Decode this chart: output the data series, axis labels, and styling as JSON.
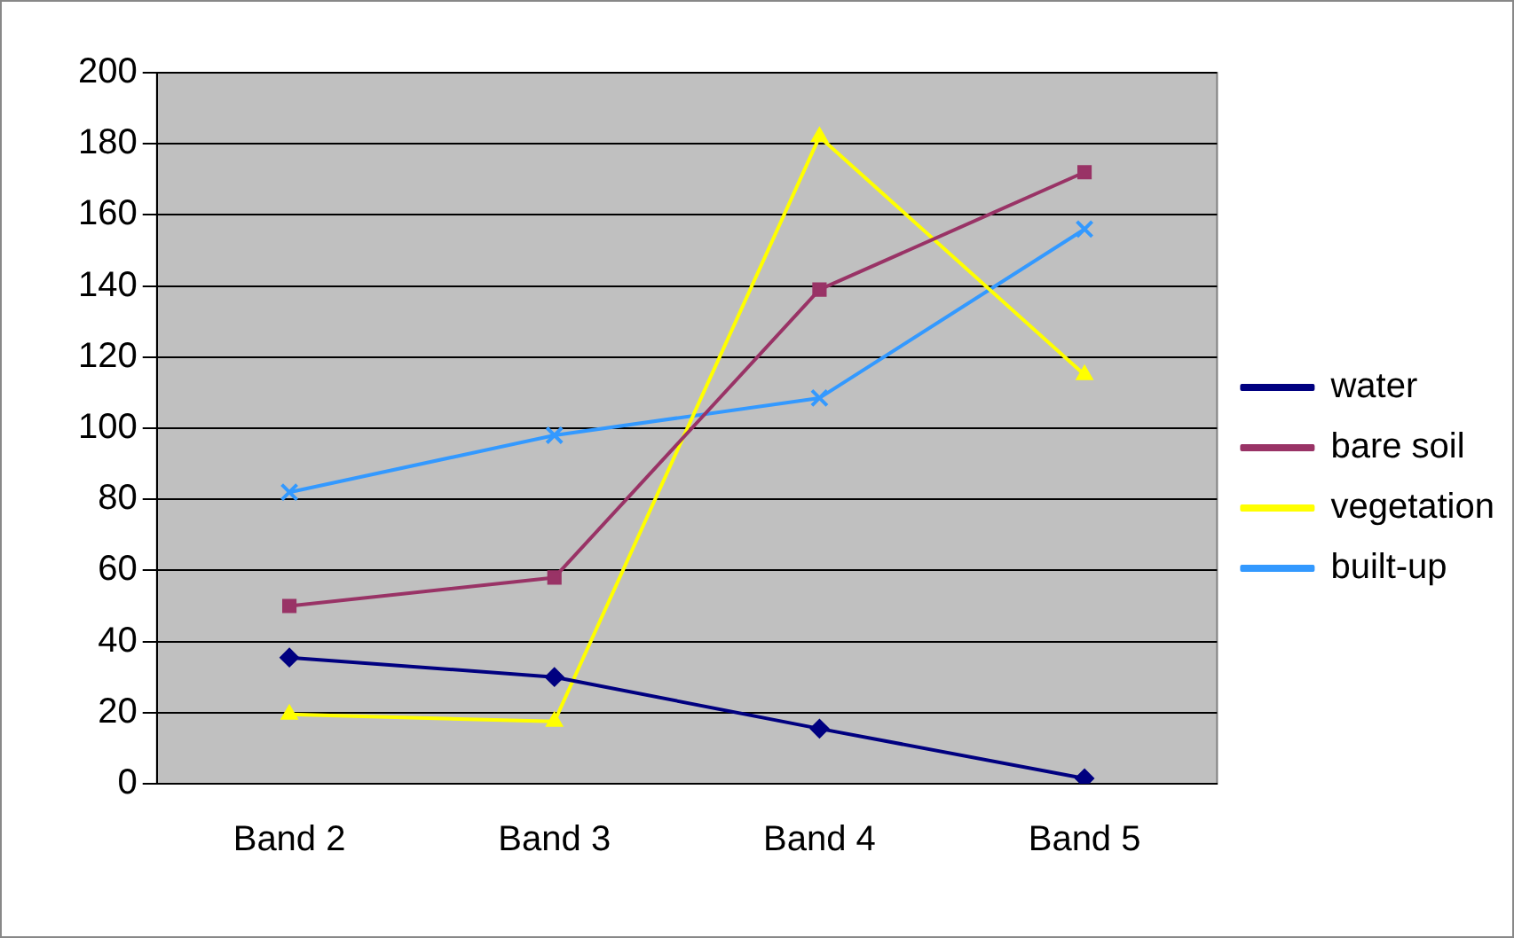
{
  "chart_data": {
    "type": "line",
    "categories": [
      "Band 2",
      "Band 3",
      "Band 4",
      "Band 5"
    ],
    "series": [
      {
        "name": "water",
        "color": "#000080",
        "marker": "diamond",
        "values": [
          35.5,
          30,
          15.5,
          1.5
        ]
      },
      {
        "name": "bare soil",
        "color": "#993366",
        "marker": "square",
        "values": [
          50,
          58,
          139,
          172
        ]
      },
      {
        "name": "vegetation",
        "color": "#ffff00",
        "marker": "triangle",
        "values": [
          19.5,
          17.5,
          182,
          115
        ]
      },
      {
        "name": "built-up",
        "color": "#3399ff",
        "marker": "cross",
        "values": [
          82,
          98,
          108.5,
          156
        ]
      }
    ],
    "ylim": [
      0,
      200
    ],
    "yticks": [
      0,
      20,
      40,
      60,
      80,
      100,
      120,
      140,
      160,
      180,
      200
    ],
    "grid": "y",
    "legend": "right"
  }
}
